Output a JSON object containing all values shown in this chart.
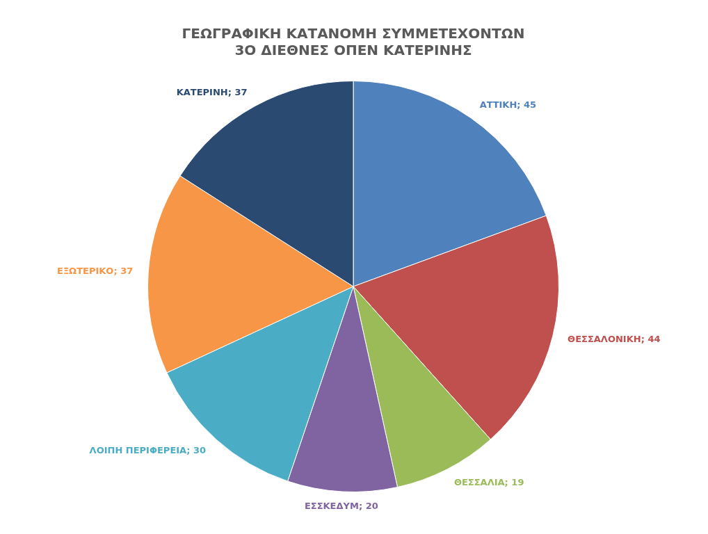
{
  "chart_data": {
    "type": "pie",
    "title": "ΓΕΩΓΡΑΦΙΚΗ ΚΑΤΑΝΟΜΗ ΣΥΜΜΕΤΕΧΟΝΤΩΝ\n3Ο ΔΙΕΘΝΕΣ ΟΠΕΝ ΚΑΤΕΡΙΝΗΣ",
    "categories": [
      "ΑΤΤΙΚΗ",
      "ΘΕΣΣΑΛΟΝΙΚΗ",
      "ΘΕΣΣΑΛΙΑ",
      "ΕΣΣΚΕΔΥΜ",
      "ΛΟΙΠΗ ΠΕΡΙΦΕΡΕΙΑ",
      "ΕΞΩΤΕΡΙΚΟ",
      "ΚΑΤΕΡΙΝΗ"
    ],
    "values": [
      45,
      44,
      19,
      20,
      30,
      37,
      37
    ],
    "value_labels": [
      "; 45",
      "; 44",
      "; 19",
      "; 20",
      "; 30",
      "; 37",
      "; 37"
    ],
    "colors": [
      "#4f81bd",
      "#c0504d",
      "#9bbb59",
      "#8064a2",
      "#4bacc6",
      "#f79646",
      "#2a4a72"
    ],
    "legend": false
  }
}
